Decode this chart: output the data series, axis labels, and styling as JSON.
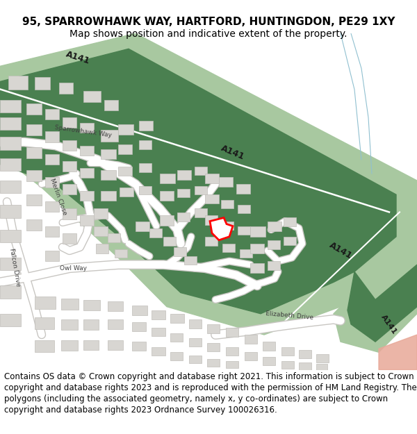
{
  "title_line1": "95, SPARROWHAWK WAY, HARTFORD, HUNTINGDON, PE29 1XY",
  "title_line2": "Map shows position and indicative extent of the property.",
  "footer_lines": [
    "Contains OS data © Crown copyright and database right 2021. This information is subject to Crown copyright and database rights 2023 and is reproduced with the permission of",
    "HM Land Registry. The polygons (including the associated geometry, namely x, y co-ordinates) are subject to Crown copyright and database rights 2023 Ordnance Survey",
    "100026316."
  ],
  "title_fontsize": 11,
  "subtitle_fontsize": 10,
  "footer_fontsize": 8.5,
  "bg_color": "#ffffff",
  "fig_width": 6.0,
  "fig_height": 6.25,
  "dpi": 100,
  "a141_dark": "#4a8050",
  "a141_light": "#a8c8a0",
  "bldg_fill": "#d8d6d2",
  "bldg_edge": "#c0beba",
  "road_white": "#ffffff",
  "road_gray": "#d8d6d2",
  "water_color": "#c8e0e8",
  "salmon_color": "#e8a898"
}
